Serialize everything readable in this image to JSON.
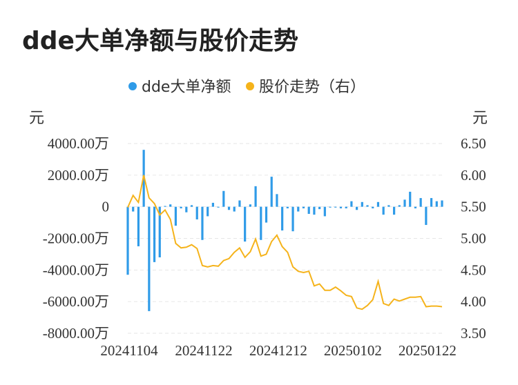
{
  "title": "dde大单净额与股价走势",
  "chart_data": {
    "type": "bar+line",
    "legend": [
      {
        "name": "dde大单净额",
        "color": "#2f9be8"
      },
      {
        "name": "股价走势（右）",
        "color": "#f5b31b"
      }
    ],
    "y_left_unit": "元",
    "y_right_unit": "元",
    "y_left_ticks": [
      "4000.00万",
      "2000.00万",
      "0",
      "-2000.00万",
      "-4000.00万",
      "-6000.00万",
      "-8000.00万"
    ],
    "y_left_values": [
      4000,
      2000,
      0,
      -2000,
      -4000,
      -6000,
      -8000
    ],
    "y_right_ticks": [
      "6.50",
      "6.00",
      "5.50",
      "5.00",
      "4.50",
      "4.00",
      "3.50"
    ],
    "y_right_values": [
      6.5,
      6.0,
      5.5,
      5.0,
      4.5,
      4.0,
      3.5
    ],
    "ylim_left": [
      -8000,
      4000
    ],
    "ylim_right": [
      3.5,
      6.5
    ],
    "x_tick_labels": [
      "20241104",
      "20241122",
      "20241212",
      "20250102",
      "20250122"
    ],
    "x_tick_indices": [
      0,
      14,
      28,
      42,
      56
    ],
    "bars": [
      -4300,
      -300,
      -2500,
      3600,
      -6600,
      -3500,
      -3200,
      50,
      150,
      -1200,
      -100,
      -350,
      100,
      -800,
      -2100,
      -600,
      250,
      -50,
      1000,
      -200,
      -300,
      400,
      -2200,
      150,
      1300,
      -2100,
      -1000,
      1900,
      800,
      -1500,
      -100,
      -1550,
      -300,
      -100,
      -450,
      -500,
      -150,
      -600,
      -50,
      -50,
      -100,
      -100,
      350,
      -200,
      300,
      100,
      -100,
      300,
      -500,
      100,
      -500,
      100,
      450,
      950,
      -100,
      550,
      -1150,
      550,
      350,
      400
    ],
    "prices": [
      5.49,
      5.68,
      5.57,
      6.0,
      5.64,
      5.55,
      5.37,
      5.45,
      5.3,
      4.92,
      4.85,
      4.86,
      4.9,
      4.84,
      4.57,
      4.55,
      4.57,
      4.56,
      4.65,
      4.68,
      4.78,
      4.85,
      4.7,
      4.79,
      4.99,
      4.72,
      4.75,
      4.95,
      5.05,
      4.87,
      4.78,
      4.55,
      4.48,
      4.46,
      4.48,
      4.25,
      4.28,
      4.18,
      4.18,
      4.23,
      4.17,
      4.1,
      4.08,
      3.9,
      3.88,
      3.94,
      4.03,
      4.32,
      3.97,
      3.94,
      4.04,
      4.01,
      4.04,
      4.07,
      4.07,
      4.08,
      3.92,
      3.93,
      3.93,
      3.92
    ]
  }
}
